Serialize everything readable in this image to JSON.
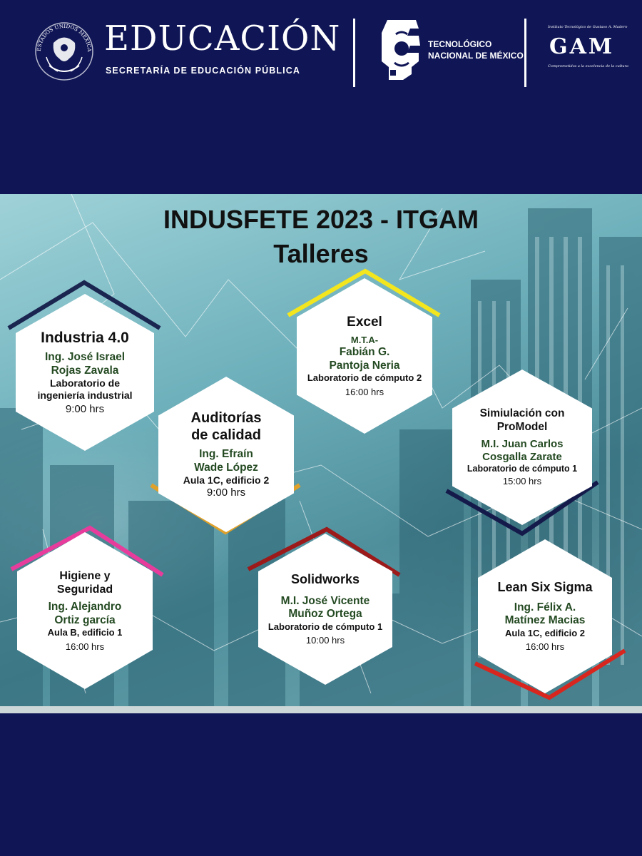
{
  "header": {
    "seal_text": "ESTADOS UNIDOS MEXICANOS",
    "title": "EDUCACIÓN",
    "subtitle": "SECRETARÍA DE EDUCACIÓN PÚBLICA",
    "tec_line1": "TECNOLÓGICO",
    "tec_line2": "NACIONAL DE MÉXICO",
    "gam_top": "Instituto Tecnológico de Gustavo A. Madero",
    "gam_word": "GAM",
    "gam_bottom": "Comprometidos a la excelencia de la cultura",
    "icons": [
      "mexican-seal-icon",
      "tecnm-logo-icon",
      "gam-logo-icon"
    ]
  },
  "poster": {
    "title": "INDUSFETE 2023 - ITGAM",
    "subtitle": "Talleres",
    "workshops": [
      {
        "title": "Industria 4.0",
        "name1": "Ing. José Israel",
        "name2": "Rojas Zavala",
        "room1": "Laboratorio  de",
        "room2": "ingeniería industrial",
        "time": "9:00 hrs",
        "accent": "#1a2550"
      },
      {
        "title": "Excel",
        "prefix": "M.T.A-",
        "name1": "Fabián G.",
        "name2": "Pantoja  Neria",
        "room1": "Laboratorio de cómputo 2",
        "time": "16:00 hrs",
        "accent": "#f3e61f"
      },
      {
        "title1": "Auditorías",
        "title2": "de calidad",
        "name1": "Ing. Efraín",
        "name2": "Wade López",
        "room1": "Aula 1C, edificio 2",
        "time": "9:00 hrs",
        "accent": "#e0a12a"
      },
      {
        "title1": "Simiulación con",
        "title2": "ProModel",
        "name1": "M.I. Juan Carlos",
        "name2": "Cosgalla Zarate",
        "room1": "Laboratorio de cómputo 1",
        "time": "15:00 hrs",
        "accent": "#141a4a"
      },
      {
        "title1": "Higiene y",
        "title2": "Seguridad",
        "name1": "Ing. Alejandro",
        "name2": "Ortiz garcía",
        "room1": "Aula B, edificio 1",
        "time": "16:00 hrs",
        "accent": "#e83c9c"
      },
      {
        "title": "Solidworks",
        "name1": "M.I. José Vicente",
        "name2": "Muñoz Ortega",
        "room1": "Laboratorio de cómputo 1",
        "time": "10:00 hrs",
        "accent": "#9c1a1a"
      },
      {
        "title": "Lean Six Sigma",
        "name1": "Ing. Félix A.",
        "name2": "Matínez Macias",
        "room1": "Aula 1C, edificio 2",
        "time": "16:00 hrs",
        "accent": "#d8261e"
      }
    ]
  }
}
